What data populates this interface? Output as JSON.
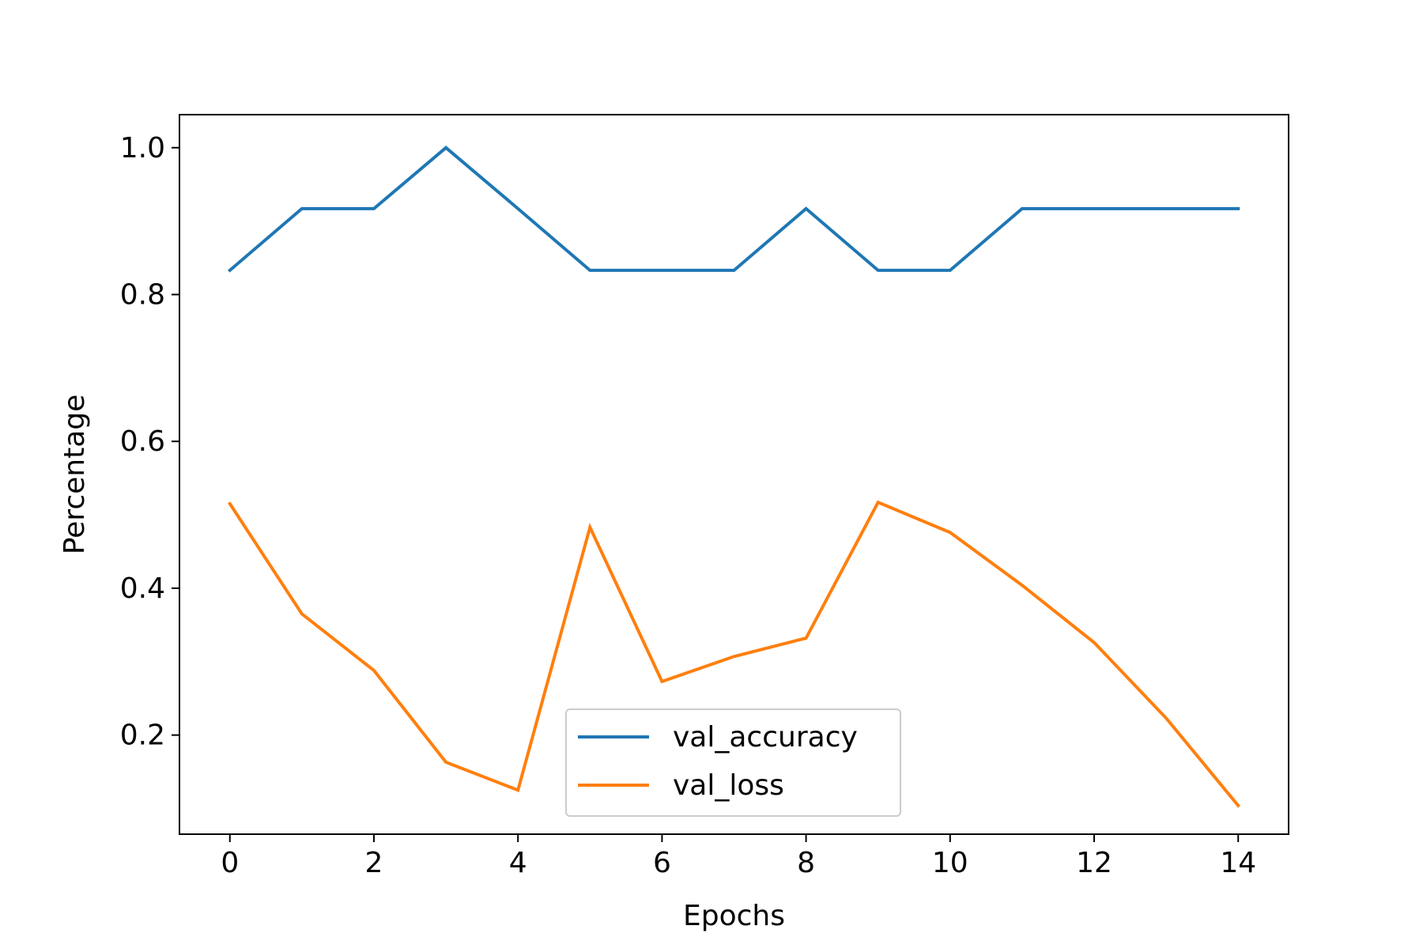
{
  "chart_data": {
    "type": "line",
    "title": "",
    "xlabel": "Epochs",
    "ylabel": "Percentage",
    "xlim": [
      -0.7,
      14.7
    ],
    "ylim": [
      0.065,
      1.045
    ],
    "xticks": [
      0,
      2,
      4,
      6,
      8,
      10,
      12,
      14
    ],
    "yticks": [
      0.2,
      0.4,
      0.6,
      0.8,
      1.0
    ],
    "ytick_labels": [
      "0.2",
      "0.4",
      "0.6",
      "0.8",
      "1.0"
    ],
    "grid": false,
    "legend_position": "lower-center",
    "x": [
      0,
      1,
      2,
      3,
      4,
      5,
      6,
      7,
      8,
      9,
      10,
      11,
      12,
      13,
      14
    ],
    "series": [
      {
        "name": "val_accuracy",
        "color": "#1f77b4",
        "values": [
          0.833,
          0.917,
          0.917,
          1.0,
          0.917,
          0.833,
          0.833,
          0.833,
          0.917,
          0.833,
          0.833,
          0.917,
          0.917,
          0.917,
          0.917
        ]
      },
      {
        "name": "val_loss",
        "color": "#ff7f0e",
        "values": [
          0.515,
          0.365,
          0.288,
          0.163,
          0.125,
          0.483,
          0.273,
          0.307,
          0.332,
          0.517,
          0.476,
          0.404,
          0.326,
          0.223,
          0.104
        ]
      }
    ]
  }
}
